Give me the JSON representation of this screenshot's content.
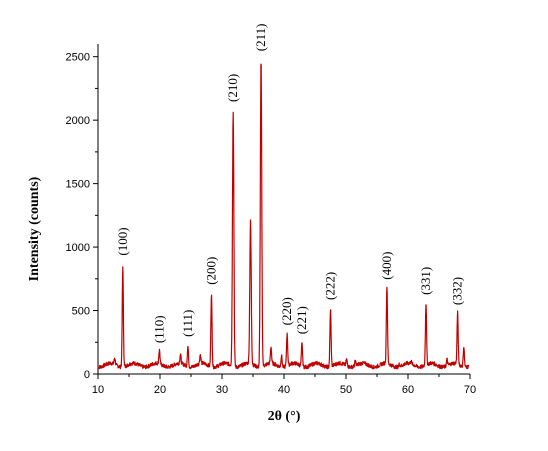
{
  "chart_data": {
    "type": "line",
    "xlabel": "2θ (°)",
    "ylabel": "Intensity (counts)",
    "xlim": [
      10,
      70
    ],
    "ylim": [
      0,
      2600
    ],
    "x_ticks": [
      10,
      20,
      30,
      40,
      50,
      60,
      70
    ],
    "y_ticks": [
      0,
      500,
      1000,
      1500,
      2000,
      2500
    ],
    "grid": false,
    "line_color": "#c00000",
    "baseline": 70,
    "peaks": [
      {
        "x": 12.7,
        "y": 120
      },
      {
        "x": 14.0,
        "y": 870,
        "label": "(100)"
      },
      {
        "x": 19.9,
        "y": 180,
        "label": "(110)"
      },
      {
        "x": 23.3,
        "y": 140
      },
      {
        "x": 24.5,
        "y": 230,
        "label": "(111)"
      },
      {
        "x": 26.5,
        "y": 140
      },
      {
        "x": 28.3,
        "y": 640,
        "label": "(200)"
      },
      {
        "x": 31.8,
        "y": 2080,
        "label": "(210)"
      },
      {
        "x": 34.6,
        "y": 1190
      },
      {
        "x": 36.3,
        "y": 2480,
        "label": "(211)"
      },
      {
        "x": 37.9,
        "y": 200
      },
      {
        "x": 39.6,
        "y": 160
      },
      {
        "x": 40.5,
        "y": 320,
        "label": "(220)"
      },
      {
        "x": 42.9,
        "y": 250,
        "label": "(221)"
      },
      {
        "x": 47.5,
        "y": 520,
        "label": "(222)"
      },
      {
        "x": 50.1,
        "y": 120
      },
      {
        "x": 51.5,
        "y": 110
      },
      {
        "x": 56.6,
        "y": 680,
        "label": "(400)"
      },
      {
        "x": 58.6,
        "y": 90
      },
      {
        "x": 60.5,
        "y": 90
      },
      {
        "x": 62.9,
        "y": 560,
        "label": "(331)"
      },
      {
        "x": 66.3,
        "y": 120
      },
      {
        "x": 68.0,
        "y": 480,
        "label": "(332)"
      },
      {
        "x": 69.0,
        "y": 230
      }
    ]
  }
}
